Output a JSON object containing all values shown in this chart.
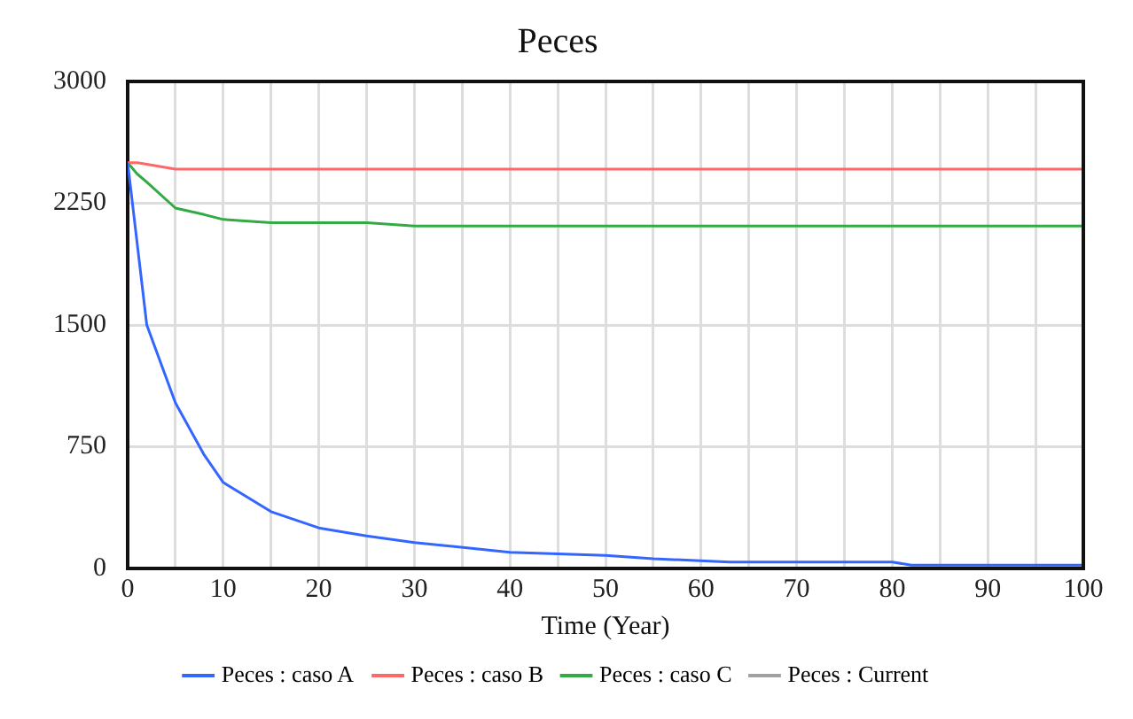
{
  "chart_data": {
    "type": "line",
    "title": "Peces",
    "xlabel": "Time (Year)",
    "x": [
      0,
      1,
      2,
      5,
      8,
      10,
      15,
      20,
      25,
      30,
      40,
      50,
      55,
      63,
      80,
      82,
      100
    ],
    "series": [
      {
        "name": "Peces : caso A",
        "color": "#3366ff",
        "values": [
          2500,
          2000,
          1500,
          1020,
          700,
          530,
          350,
          250,
          200,
          160,
          100,
          80,
          60,
          40,
          40,
          20,
          20
        ]
      },
      {
        "name": "Peces : caso B",
        "color": "#ff6666",
        "values": [
          2500,
          2500,
          2490,
          2460,
          2460,
          2460,
          2460,
          2460,
          2460,
          2460,
          2460,
          2460,
          2460,
          2460,
          2460,
          2460,
          2460
        ]
      },
      {
        "name": "Peces : caso C",
        "color": "#33aa44",
        "values": [
          2500,
          2430,
          2380,
          2220,
          2180,
          2150,
          2130,
          2130,
          2130,
          2110,
          2110,
          2110,
          2110,
          2110,
          2110,
          2110,
          2110
        ]
      },
      {
        "name": "Peces : Current",
        "color": "#a0a0a0",
        "values": [
          null,
          null,
          null,
          null,
          null,
          null,
          null,
          null,
          null,
          null,
          null,
          null,
          null,
          null,
          null,
          null,
          null
        ]
      }
    ],
    "xlim": [
      0,
      100
    ],
    "xticks": [
      0,
      {
        "value": 5,
        "label": null
      },
      10,
      {
        "value": 15,
        "label": null
      },
      20,
      {
        "value": 25,
        "label": null
      },
      30,
      {
        "value": 35,
        "label": null
      },
      40,
      {
        "value": 45,
        "label": null
      },
      50,
      {
        "value": 55,
        "label": null
      },
      60,
      {
        "value": 65,
        "label": null
      },
      70,
      {
        "value": 75,
        "label": null
      },
      80,
      {
        "value": 85,
        "label": null
      },
      90,
      {
        "value": 95,
        "label": null
      },
      100
    ],
    "ylim": [
      0,
      3000
    ],
    "yticks": [
      0,
      750,
      1500,
      2250,
      3000
    ],
    "grid": true,
    "legend": "bottom",
    "marker": "none",
    "line_style": "solid"
  }
}
